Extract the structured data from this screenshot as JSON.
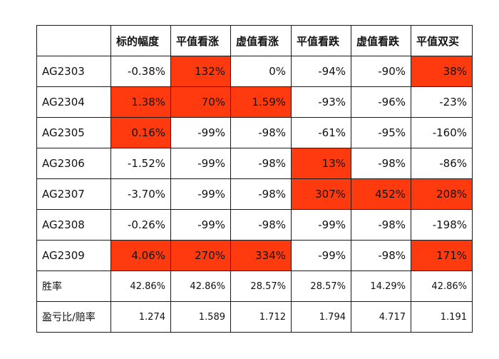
{
  "headers": [
    "",
    "标的幅度",
    "平值看涨",
    "虚值看涨",
    "平值看跌",
    "虚值看跌",
    "平值双买"
  ],
  "rows": [
    {
      "name": "AG2303",
      "values": [
        "-0.38%",
        "132%",
        "0%",
        "-94%",
        "-90%",
        "38%"
      ],
      "highlight": [
        false,
        true,
        false,
        false,
        false,
        true
      ]
    },
    {
      "name": "AG2304",
      "values": [
        "1.38%",
        "70%",
        "1.59%",
        "-93%",
        "-96%",
        "-23%"
      ],
      "highlight": [
        true,
        true,
        true,
        false,
        false,
        false
      ]
    },
    {
      "name": "AG2305",
      "values": [
        "0.16%",
        "-99%",
        "-98%",
        "-61%",
        "-95%",
        "-160%"
      ],
      "highlight": [
        true,
        false,
        false,
        false,
        false,
        false
      ]
    },
    {
      "name": "AG2306",
      "values": [
        "-1.52%",
        "-99%",
        "-98%",
        "13%",
        "-98%",
        "-86%"
      ],
      "highlight": [
        false,
        false,
        false,
        true,
        false,
        false
      ]
    },
    {
      "name": "AG2307",
      "values": [
        "-3.70%",
        "-99%",
        "-98%",
        "307%",
        "452%",
        "208%"
      ],
      "highlight": [
        false,
        false,
        false,
        true,
        true,
        true
      ]
    },
    {
      "name": "AG2308",
      "values": [
        "-0.26%",
        "-99%",
        "-98%",
        "-99%",
        "-98%",
        "-198%"
      ],
      "highlight": [
        false,
        false,
        false,
        false,
        false,
        false
      ]
    },
    {
      "name": "AG2309",
      "values": [
        "4.06%",
        "270%",
        "334%",
        "-99%",
        "-98%",
        "171%"
      ],
      "highlight": [
        true,
        true,
        true,
        false,
        false,
        true
      ]
    }
  ],
  "stats": [
    {
      "name": "胜率",
      "values": [
        "42.86%",
        "42.86%",
        "28.57%",
        "28.57%",
        "14.29%",
        "42.86%"
      ]
    },
    {
      "name": "盈亏比/赔率",
      "values": [
        "1.274",
        "1.589",
        "1.712",
        "1.794",
        "4.717",
        "1.191"
      ]
    }
  ],
  "highlight_color": "#ff3a0f"
}
